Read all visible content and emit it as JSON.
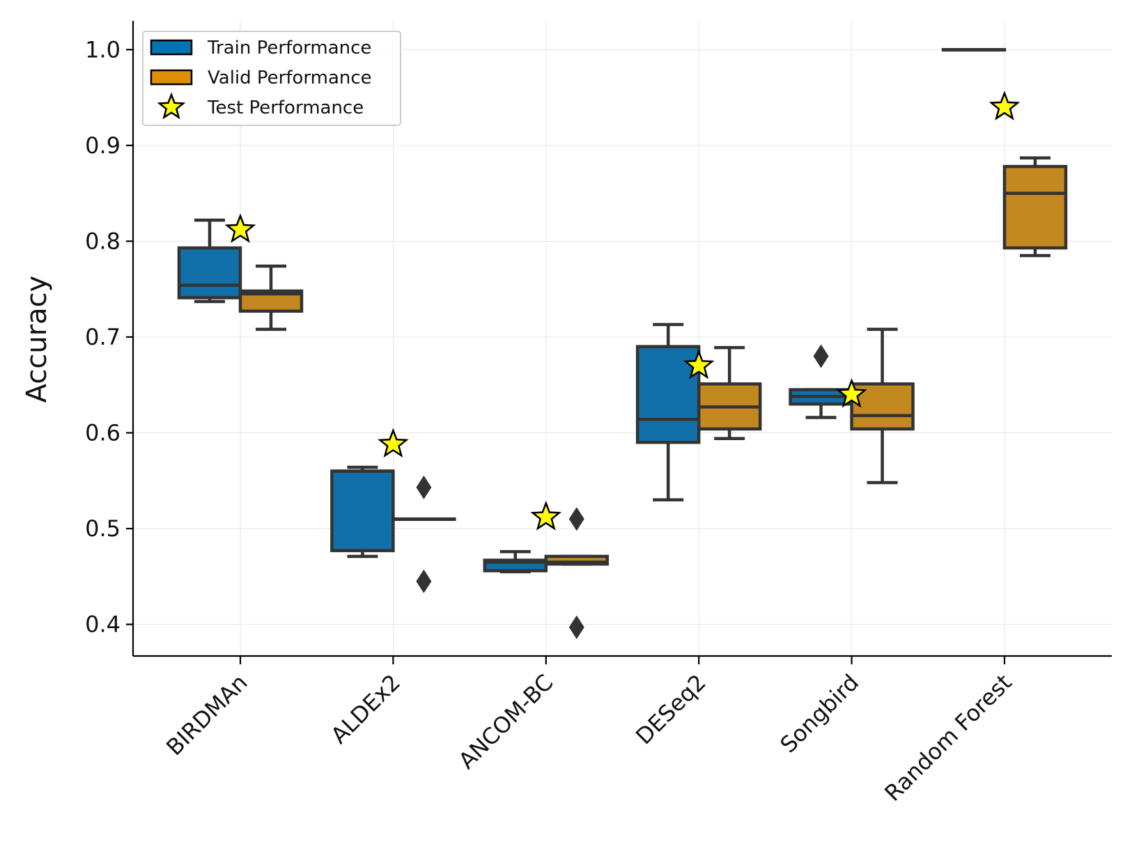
{
  "chart_data": {
    "type": "box",
    "ylabel": "Accuracy",
    "xlabel": "",
    "ylim": [
      0.367,
      1.03
    ],
    "yticks": [
      "0.4",
      "0.5",
      "0.6",
      "0.7",
      "0.8",
      "0.9",
      "1.0"
    ],
    "grid": true,
    "legend_position": "top-left",
    "categories": [
      "BIRDMAn",
      "ALDEx2",
      "ANCOM-BC",
      "DESeq2",
      "Songbird",
      "Random Forest"
    ],
    "series": [
      {
        "name": "Train Performance",
        "color": "#0173b2",
        "fill": "#1170aa",
        "boxes": [
          {
            "whislo": 0.737,
            "q1": 0.741,
            "med": 0.754,
            "q3": 0.793,
            "whishi": 0.822,
            "fliers": []
          },
          {
            "whislo": 0.471,
            "q1": 0.477,
            "med": 0.56,
            "q3": 0.56,
            "whishi": 0.564,
            "fliers": []
          },
          {
            "whislo": 0.455,
            "q1": 0.456,
            "med": 0.465,
            "q3": 0.467,
            "whishi": 0.476,
            "fliers": []
          },
          {
            "whislo": 0.53,
            "q1": 0.59,
            "med": 0.614,
            "q3": 0.69,
            "whishi": 0.713,
            "fliers": []
          },
          {
            "whislo": 0.616,
            "q1": 0.63,
            "med": 0.638,
            "q3": 0.645,
            "whishi": 0.645,
            "fliers": [
              0.68
            ]
          },
          {
            "whislo": 1.0,
            "q1": 1.0,
            "med": 1.0,
            "q3": 1.0,
            "whishi": 1.0,
            "fliers": []
          }
        ]
      },
      {
        "name": "Valid Performance",
        "color": "#de8f05",
        "fill": "#c38820",
        "boxes": [
          {
            "whislo": 0.708,
            "q1": 0.727,
            "med": 0.745,
            "q3": 0.748,
            "whishi": 0.774,
            "fliers": []
          },
          {
            "whislo": 0.51,
            "q1": 0.51,
            "med": 0.51,
            "q3": 0.51,
            "whishi": 0.51,
            "fliers": [
              0.543,
              0.445
            ]
          },
          {
            "whislo": 0.463,
            "q1": 0.463,
            "med": 0.465,
            "q3": 0.471,
            "whishi": 0.471,
            "fliers": [
              0.51,
              0.397
            ]
          },
          {
            "whislo": 0.594,
            "q1": 0.604,
            "med": 0.627,
            "q3": 0.651,
            "whishi": 0.689,
            "fliers": []
          },
          {
            "whislo": 0.548,
            "q1": 0.604,
            "med": 0.618,
            "q3": 0.651,
            "whishi": 0.708,
            "fliers": []
          },
          {
            "whislo": 0.785,
            "q1": 0.793,
            "med": 0.85,
            "q3": 0.878,
            "whishi": 0.887,
            "fliers": []
          }
        ]
      }
    ],
    "test": {
      "name": "Test Performance",
      "marker": "star",
      "color": "#ffff00",
      "values": [
        0.812,
        0.588,
        0.512,
        0.67,
        0.64,
        0.94
      ]
    }
  }
}
